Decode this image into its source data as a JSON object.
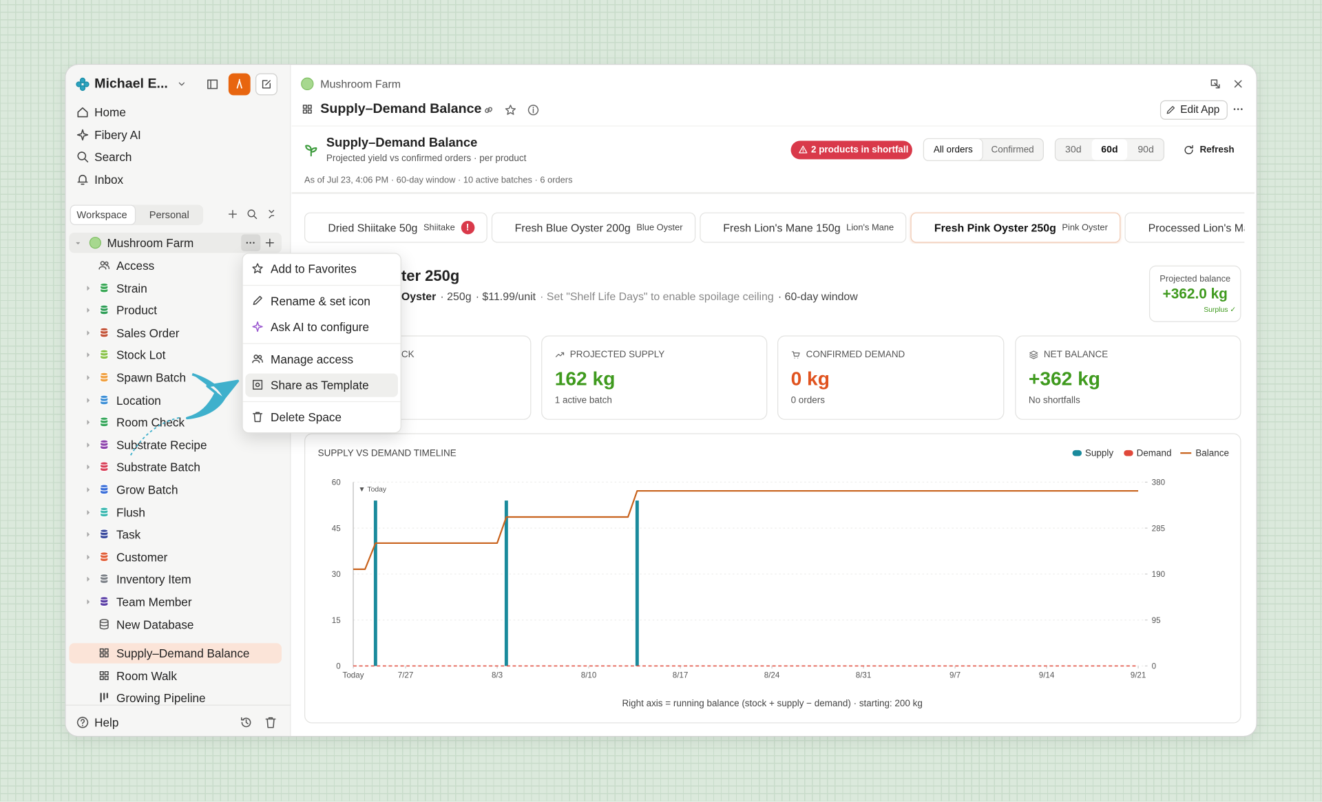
{
  "sidebar": {
    "workspace": "Michael E...",
    "nav": [
      "Home",
      "Fibery AI",
      "Search",
      "Inbox"
    ],
    "tabs": [
      "Workspace",
      "Personal"
    ],
    "space": "Mushroom Farm",
    "items": [
      {
        "label": "Access"
      },
      {
        "label": "Strain",
        "color": "#3aa856"
      },
      {
        "label": "Product",
        "color": "#2f9e57"
      },
      {
        "label": "Sales Order",
        "color": "#c4553a"
      },
      {
        "label": "Stock Lot",
        "color": "#8bc34a"
      },
      {
        "label": "Spawn Batch",
        "color": "#f0a040"
      },
      {
        "label": "Location",
        "color": "#3d8fd6"
      },
      {
        "label": "Room Check",
        "color": "#35a65a"
      },
      {
        "label": "Substrate Recipe",
        "color": "#8e44ad"
      },
      {
        "label": "Substrate Batch",
        "color": "#d9415a"
      },
      {
        "label": "Grow Batch",
        "color": "#3b6fd9"
      },
      {
        "label": "Flush",
        "color": "#3bb8b0"
      },
      {
        "label": "Task",
        "color": "#3a4a9e"
      },
      {
        "label": "Customer",
        "color": "#e2603a"
      },
      {
        "label": "Inventory Item",
        "color": "#7d8288"
      },
      {
        "label": "Team Member",
        "color": "#5b3fa6"
      },
      {
        "label": "New Database"
      }
    ],
    "views": [
      {
        "label": "Supply–Demand Balance",
        "selected": true
      },
      {
        "label": "Room Walk"
      },
      {
        "label": "Growing Pipeline"
      }
    ],
    "help": "Help"
  },
  "menu": [
    [
      "Add to Favorites"
    ],
    [
      "Rename & set icon",
      "Ask AI to configure"
    ],
    [
      "Manage access",
      "Share as Template"
    ],
    [
      "Delete Space"
    ]
  ],
  "menu_highlighted": [
    2,
    1
  ],
  "header": {
    "breadcrumb": "Mushroom Farm",
    "title": "Supply–Demand Balance",
    "edit": "Edit App"
  },
  "app": {
    "title": "Supply–Demand Balance",
    "subtitle": "Projected yield vs confirmed orders · per product",
    "badge": "2 products in shortfall",
    "order_filters": [
      "All orders",
      "Confirmed"
    ],
    "order_active": 0,
    "windows": [
      "30d",
      "60d",
      "90d"
    ],
    "window_active": 1,
    "refresh": "Refresh",
    "as_of": "As of Jul 23, 4:06 PM · 60-day window · 10 active batches · 6 orders"
  },
  "products": [
    {
      "name": "Dried Shiitake 50g",
      "strain": "Shiitake",
      "alert": "!"
    },
    {
      "name": "Fresh Blue Oyster 200g",
      "strain": "Blue Oyster"
    },
    {
      "name": "Fresh Lion's Mane 150g",
      "strain": "Lion's Mane"
    },
    {
      "name": "Fresh Pink Oyster 250g",
      "strain": "Pink Oyster",
      "active": true
    },
    {
      "name": "Processed Lion's Mane"
    }
  ],
  "detail": {
    "title": "ter 250g",
    "meta": [
      "Oyster",
      "· 250g",
      "· $11.99/unit",
      "· Set \"Shelf Life Days\" to enable spoilage ceiling",
      "· 60-day window"
    ],
    "projected_label": "Projected balance",
    "projected_value": "+362.0 kg",
    "projected_note": "Surplus ✓"
  },
  "kpis": [
    {
      "label": "CK"
    },
    {
      "label": "PROJECTED SUPPLY",
      "value": "162 kg",
      "note": "1 active batch",
      "color": "#3f9a1e"
    },
    {
      "label": "CONFIRMED DEMAND",
      "value": "0 kg",
      "note": "0 orders",
      "color": "#e0531f"
    },
    {
      "label": "NET BALANCE",
      "value": "+362 kg",
      "note": "No shortfalls",
      "color": "#3f9a1e"
    }
  ],
  "timeline": {
    "type": "bar-line",
    "title": "SUPPLY VS DEMAND TIMELINE",
    "legend": "top-right",
    "grid": true,
    "xlim": [
      0,
      60
    ],
    "xticks": [
      {
        "value": 0,
        "label": "Today"
      },
      {
        "value": 4,
        "label": "7/27"
      },
      {
        "value": 11,
        "label": "8/3"
      },
      {
        "value": 18,
        "label": "8/10"
      },
      {
        "value": 25,
        "label": "8/17"
      },
      {
        "value": 32,
        "label": "8/24"
      },
      {
        "value": 39,
        "label": "8/31"
      },
      {
        "value": 46,
        "label": "9/7"
      },
      {
        "value": 53,
        "label": "9/14"
      },
      {
        "value": 60,
        "label": "9/21"
      }
    ],
    "ylim": [
      0,
      60
    ],
    "yticks": [
      0,
      15,
      30,
      45,
      60
    ],
    "y2lim": [
      0,
      380
    ],
    "y2ticks": [
      0,
      95,
      190,
      285,
      380
    ],
    "series": [
      {
        "name": "Supply",
        "type": "bar",
        "color": "#1a8a9c",
        "x": [
          1.7,
          11.7,
          21.7
        ],
        "values": [
          54,
          54,
          54
        ]
      },
      {
        "name": "Demand",
        "type": "line",
        "dashed": true,
        "color": "#e0483a",
        "x": [
          0,
          60
        ],
        "values": [
          0,
          0
        ]
      },
      {
        "name": "Balance",
        "type": "line",
        "axis": "y2",
        "color": "#c8621c",
        "x": [
          0,
          0.9,
          1.7,
          11,
          11.7,
          21,
          21.7,
          60
        ],
        "values": [
          200,
          200,
          254,
          254,
          308,
          308,
          362,
          362
        ]
      }
    ],
    "annotation": "▼ Today",
    "note": "Right axis = running balance (stock + supply − demand) · starting: 200 kg"
  }
}
